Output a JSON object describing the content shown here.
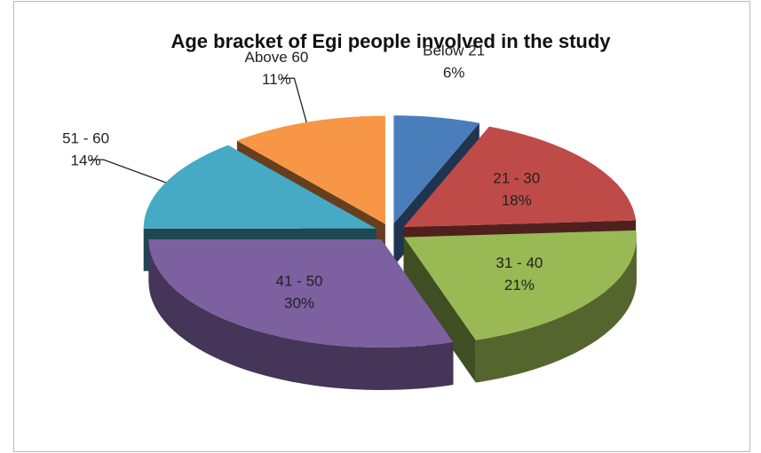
{
  "chart_data": {
    "type": "pie3d",
    "title": "Age bracket of Egi people involved in the study",
    "categories": [
      "Below  21",
      "21 - 30",
      "31 - 40",
      "41 - 50",
      "51 - 60",
      "Above 60"
    ],
    "values": [
      6,
      18,
      21,
      30,
      14,
      11
    ],
    "value_labels": [
      "6%",
      "18%",
      "21%",
      "30%",
      "14%",
      "11%"
    ],
    "colors": [
      "#4a7ebb",
      "#be4b48",
      "#98b954",
      "#7d60a0",
      "#46aac5",
      "#f79646"
    ]
  }
}
